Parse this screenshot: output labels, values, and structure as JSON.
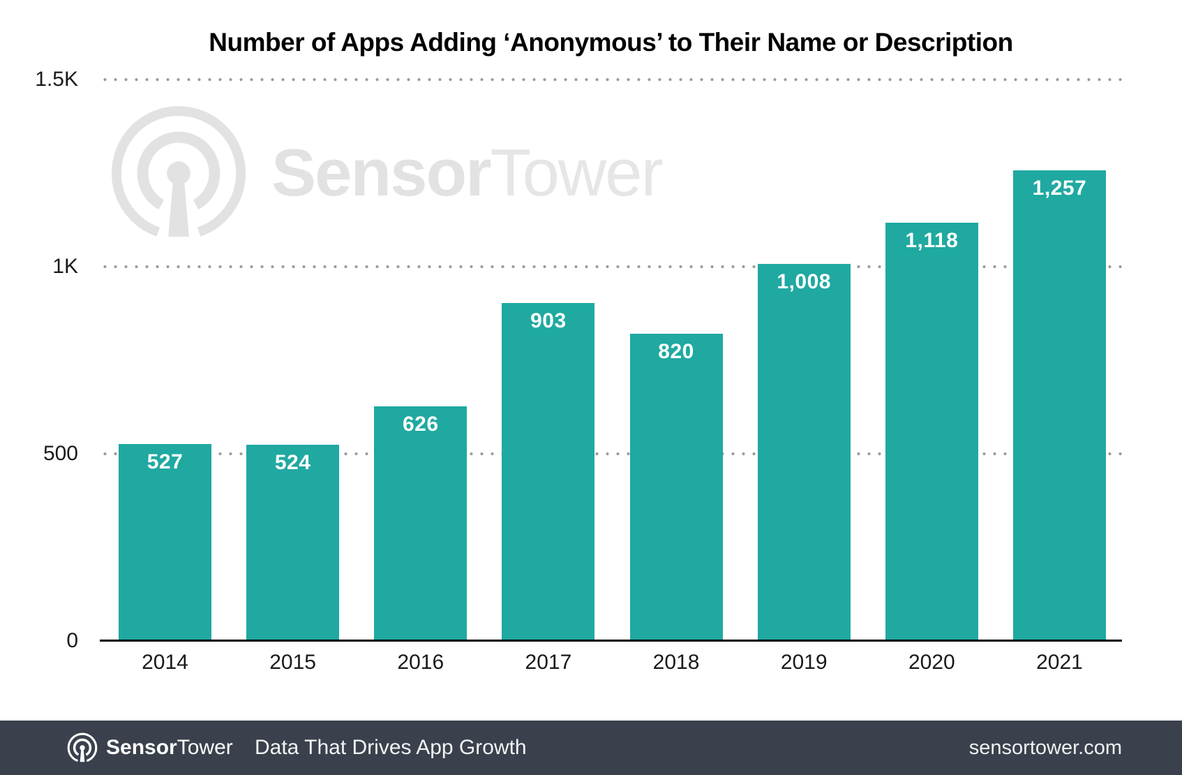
{
  "title": "Number of Apps Adding ‘Anonymous’ to Their Name or Description",
  "chart_data": {
    "type": "bar",
    "title": "Number of Apps Adding ‘Anonymous’ to Their Name or Description",
    "categories": [
      "2014",
      "2015",
      "2016",
      "2017",
      "2018",
      "2019",
      "2020",
      "2021"
    ],
    "values": [
      527,
      524,
      626,
      903,
      820,
      1008,
      1118,
      1257
    ],
    "value_labels": [
      "527",
      "524",
      "626",
      "903",
      "820",
      "1,008",
      "1,118",
      "1,257"
    ],
    "xlabel": "",
    "ylabel": "",
    "ylim": [
      0,
      1500
    ],
    "yticks": [
      {
        "value": 0,
        "label": "0"
      },
      {
        "value": 500,
        "label": "500"
      },
      {
        "value": 1000,
        "label": "1K"
      },
      {
        "value": 1500,
        "label": "1.5K"
      }
    ],
    "grid": "horizontal-dotted",
    "legend": "none",
    "bar_color": "#1fa9a1",
    "bar_label_color": "#ffffff",
    "grid_dot_color": "#9a9a9a",
    "axis_color": "#000000"
  },
  "watermark": {
    "brand_bold": "Sensor",
    "brand_light": "Tower",
    "color": "#e2e2e2"
  },
  "footer": {
    "brand_bold": "Sensor",
    "brand_light": "Tower",
    "tagline": "Data That Drives App Growth",
    "website": "sensortower.com",
    "background": "#3a414c"
  }
}
